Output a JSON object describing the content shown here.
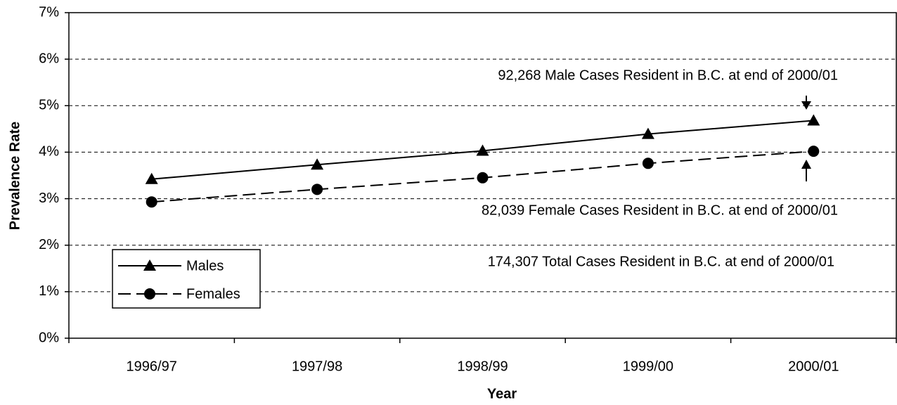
{
  "chart_data": {
    "type": "line",
    "x_label": "Year",
    "y_label": "Prevalence Rate",
    "categories": [
      "1996/97",
      "1997/98",
      "1998/99",
      "1999/00",
      "2000/01"
    ],
    "series": [
      {
        "name": "Males",
        "color": "#000000",
        "line_style": "solid",
        "marker": "triangle",
        "values": [
          3.42,
          3.73,
          4.03,
          4.39,
          4.68
        ]
      },
      {
        "name": "Females",
        "color": "#000000",
        "line_style": "dashed",
        "marker": "circle",
        "values": [
          2.93,
          3.2,
          3.45,
          3.76,
          4.02
        ]
      }
    ],
    "ylim": [
      0,
      7
    ],
    "yticks": [
      {
        "value": 0,
        "label": "0%"
      },
      {
        "value": 1,
        "label": "1%"
      },
      {
        "value": 2,
        "label": "2%"
      },
      {
        "value": 3,
        "label": "3%"
      },
      {
        "value": 4,
        "label": "4%"
      },
      {
        "value": 5,
        "label": "5%"
      },
      {
        "value": 6,
        "label": "6%"
      },
      {
        "value": 7,
        "label": "7%"
      }
    ],
    "grid": true,
    "legend": "lower left",
    "annotations": [
      "92,268 Male Cases Resident in B.C. at end of 2000/01",
      "82,039 Female Cases Resident in B.C. at end of 2000/01",
      "174,307 Total Cases Resident in B.C. at end of 2000/01"
    ]
  }
}
